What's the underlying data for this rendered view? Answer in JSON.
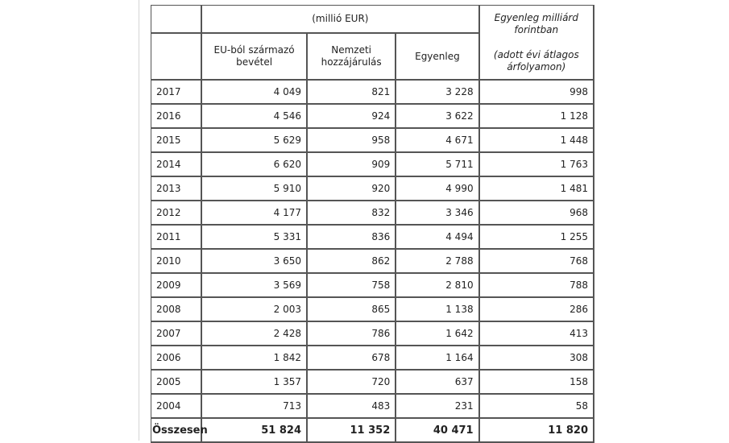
{
  "table": {
    "header": {
      "unit_label": "(millió EUR)",
      "huf_title": "Egyenleg milliárd forintban",
      "huf_note": "(adott évi átlagos árfolyamon)",
      "col_eu": "EU-ból származó bevétel",
      "col_national": "Nemzeti hozzájárulás",
      "col_balance": "Egyenleg"
    },
    "rows": [
      {
        "year": "2017",
        "eu": "4 049",
        "national": "821",
        "balance": "3 228",
        "huf": "998"
      },
      {
        "year": "2016",
        "eu": "4 546",
        "national": "924",
        "balance": "3 622",
        "huf": "1 128"
      },
      {
        "year": "2015",
        "eu": "5 629",
        "national": "958",
        "balance": "4 671",
        "huf": "1 448"
      },
      {
        "year": "2014",
        "eu": "6 620",
        "national": "909",
        "balance": "5 711",
        "huf": "1 763"
      },
      {
        "year": "2013",
        "eu": "5 910",
        "national": "920",
        "balance": "4 990",
        "huf": "1 481"
      },
      {
        "year": "2012",
        "eu": "4 177",
        "national": "832",
        "balance": "3 346",
        "huf": "968"
      },
      {
        "year": "2011",
        "eu": "5 331",
        "national": "836",
        "balance": "4 494",
        "huf": "1 255"
      },
      {
        "year": "2010",
        "eu": "3 650",
        "national": "862",
        "balance": "2 788",
        "huf": "768"
      },
      {
        "year": "2009",
        "eu": "3 569",
        "national": "758",
        "balance": "2 810",
        "huf": "788"
      },
      {
        "year": "2008",
        "eu": "2 003",
        "national": "865",
        "balance": "1 138",
        "huf": "286"
      },
      {
        "year": "2007",
        "eu": "2 428",
        "national": "786",
        "balance": "1 642",
        "huf": "413"
      },
      {
        "year": "2006",
        "eu": "1 842",
        "national": "678",
        "balance": "1 164",
        "huf": "308"
      },
      {
        "year": "2005",
        "eu": "1 357",
        "national": "720",
        "balance": "637",
        "huf": "158"
      },
      {
        "year": "2004",
        "eu": "713",
        "national": "483",
        "balance": "231",
        "huf": "58"
      }
    ],
    "total": {
      "label": "Összesen",
      "eu": "51 824",
      "national": "11 352",
      "balance": "40 471",
      "huf": "11 820"
    }
  }
}
